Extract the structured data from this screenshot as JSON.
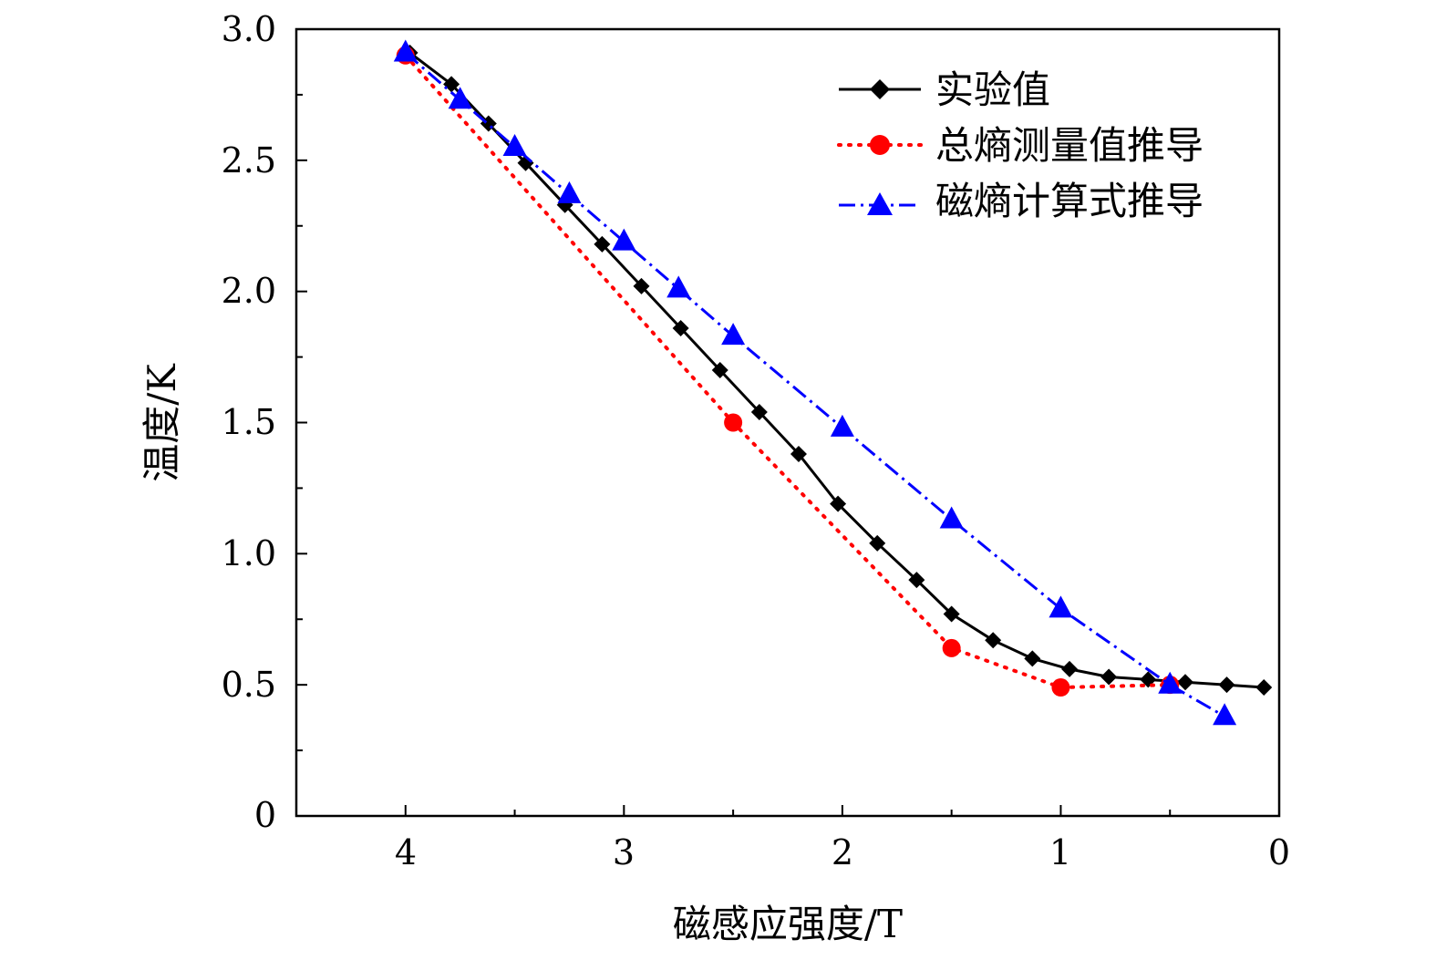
{
  "chart_data": {
    "type": "line",
    "title": "",
    "xlabel": "磁感应强度/T",
    "ylabel": "温度/K",
    "xlim": [
      4.5,
      0
    ],
    "ylim": [
      0,
      3.0
    ],
    "x_reversed": true,
    "x_ticks": [
      4,
      3,
      2,
      1,
      0
    ],
    "x_tick_labels": [
      "4",
      "3",
      "2",
      "1",
      "0"
    ],
    "x_minor_ticks": [
      3.5,
      2.5,
      1.5,
      0.5
    ],
    "y_ticks": [
      0,
      0.5,
      1.0,
      1.5,
      2.0,
      2.5,
      3.0
    ],
    "y_tick_labels": [
      "0",
      "0.5",
      "1.0",
      "1.5",
      "2.0",
      "2.5",
      "3.0"
    ],
    "y_minor_ticks": [
      0.25,
      0.75,
      1.25,
      1.75,
      2.25,
      2.75
    ],
    "grid": false,
    "legend_position": "top-right",
    "series": [
      {
        "name": "实验值",
        "color": "#000000",
        "line_style": "solid",
        "marker": "diamond",
        "x": [
          3.98,
          3.79,
          3.62,
          3.45,
          3.27,
          3.1,
          2.92,
          2.74,
          2.56,
          2.38,
          2.2,
          2.02,
          1.84,
          1.66,
          1.5,
          1.31,
          1.13,
          0.96,
          0.78,
          0.6,
          0.43,
          0.24,
          0.07
        ],
        "y": [
          2.91,
          2.79,
          2.64,
          2.49,
          2.33,
          2.18,
          2.02,
          1.86,
          1.7,
          1.54,
          1.38,
          1.19,
          1.04,
          0.9,
          0.77,
          0.67,
          0.6,
          0.56,
          0.53,
          0.52,
          0.51,
          0.5,
          0.49
        ]
      },
      {
        "name": "总熵测量值推导",
        "color": "#ff0000",
        "line_style": "dotted",
        "marker": "circle",
        "x": [
          4.0,
          2.5,
          1.5,
          1.0,
          0.5
        ],
        "y": [
          2.9,
          1.5,
          0.64,
          0.49,
          0.5
        ]
      },
      {
        "name": "磁熵计算式推导",
        "color": "#0000ff",
        "line_style": "dash-dot",
        "marker": "triangle",
        "x": [
          4.0,
          3.75,
          3.5,
          3.25,
          3.0,
          2.75,
          2.5,
          2.0,
          1.5,
          1.0,
          0.5,
          0.25
        ],
        "y": [
          2.91,
          2.73,
          2.55,
          2.37,
          2.19,
          2.01,
          1.83,
          1.48,
          1.13,
          0.79,
          0.5,
          0.38
        ]
      }
    ]
  }
}
